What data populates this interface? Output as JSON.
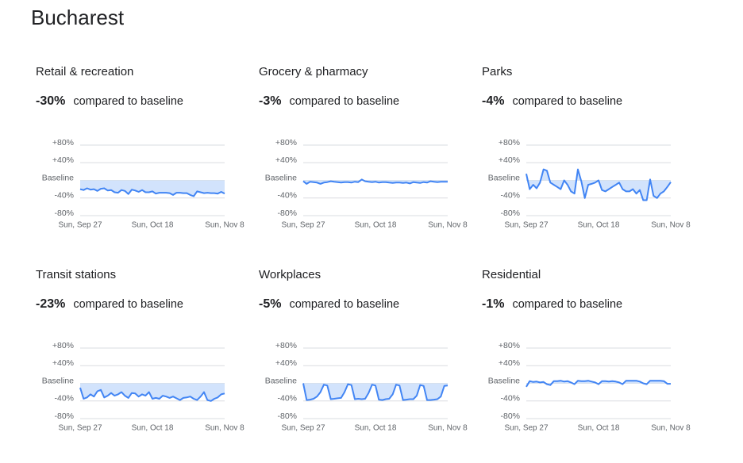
{
  "title": "Bucharest",
  "chart_data": [
    {
      "type": "line",
      "title": "Retail & recreation",
      "change": "-30%",
      "change_text": "compared to baseline",
      "color": "#4285f4",
      "fill": "#d2e3fc",
      "categories": [
        "Sun, Sep 27",
        null,
        null,
        null,
        null,
        null,
        null,
        null,
        null,
        null,
        null,
        null,
        null,
        null,
        null,
        null,
        null,
        null,
        null,
        null,
        null,
        "Sun, Oct 18",
        null,
        null,
        null,
        null,
        null,
        null,
        null,
        null,
        null,
        null,
        null,
        null,
        null,
        null,
        null,
        null,
        null,
        null,
        null,
        null,
        "Sun, Nov 8"
      ],
      "values": [
        -20,
        -22,
        -18,
        -21,
        -20,
        -24,
        -19,
        -18,
        -23,
        -22,
        -27,
        -28,
        -22,
        -24,
        -31,
        -21,
        -23,
        -26,
        -22,
        -27,
        -27,
        -25,
        -30,
        -28,
        -28,
        -28,
        -29,
        -33,
        -28,
        -28,
        -29,
        -29,
        -33,
        -36,
        -25,
        -27,
        -29,
        -28,
        -29,
        -29,
        -30,
        -26,
        -30
      ],
      "ylim": [
        -80,
        80
      ],
      "yticks": [
        {
          "value": 80,
          "label": "+80%"
        },
        {
          "value": 40,
          "label": "+40%"
        },
        {
          "value": 0,
          "label": "Baseline"
        },
        {
          "value": -40,
          "label": "-40%"
        },
        {
          "value": -80,
          "label": "-80%"
        }
      ],
      "grid": true
    },
    {
      "type": "line",
      "title": "Grocery & pharmacy",
      "change": "-3%",
      "change_text": "compared to baseline",
      "color": "#4285f4",
      "fill": "#d2e3fc",
      "categories": [
        "Sun, Sep 27",
        null,
        null,
        null,
        null,
        null,
        null,
        null,
        null,
        null,
        null,
        null,
        null,
        null,
        null,
        null,
        null,
        null,
        null,
        null,
        null,
        "Sun, Oct 18",
        null,
        null,
        null,
        null,
        null,
        null,
        null,
        null,
        null,
        null,
        null,
        null,
        null,
        null,
        null,
        null,
        null,
        null,
        null,
        null,
        "Sun, Nov 8"
      ],
      "values": [
        -2,
        -8,
        -3,
        -4,
        -5,
        -8,
        -5,
        -4,
        -2,
        -3,
        -4,
        -5,
        -4,
        -4,
        -5,
        -3,
        -4,
        2,
        -2,
        -3,
        -4,
        -3,
        -5,
        -4,
        -4,
        -5,
        -6,
        -5,
        -5,
        -6,
        -5,
        -7,
        -4,
        -5,
        -6,
        -4,
        -5,
        -2,
        -3,
        -4,
        -3,
        -3,
        -3
      ],
      "ylim": [
        -80,
        80
      ],
      "yticks": [
        {
          "value": 80,
          "label": "+80%"
        },
        {
          "value": 40,
          "label": "+40%"
        },
        {
          "value": 0,
          "label": "Baseline"
        },
        {
          "value": -40,
          "label": "-40%"
        },
        {
          "value": -80,
          "label": "-80%"
        }
      ],
      "grid": true
    },
    {
      "type": "line",
      "title": "Parks",
      "change": "-4%",
      "change_text": "compared to baseline",
      "color": "#4285f4",
      "fill": "#d2e3fc",
      "categories": [
        "Sun, Sep 27",
        null,
        null,
        null,
        null,
        null,
        null,
        null,
        null,
        null,
        null,
        null,
        null,
        null,
        null,
        null,
        null,
        null,
        null,
        null,
        null,
        "Sun, Oct 18",
        null,
        null,
        null,
        null,
        null,
        null,
        null,
        null,
        null,
        null,
        null,
        null,
        null,
        null,
        null,
        null,
        null,
        null,
        null,
        null,
        "Sun, Nov 8"
      ],
      "values": [
        15,
        -20,
        -10,
        -18,
        -5,
        25,
        22,
        -5,
        -10,
        -15,
        -20,
        0,
        -10,
        -25,
        -30,
        25,
        -2,
        -40,
        -10,
        -8,
        -5,
        0,
        -22,
        -25,
        -20,
        -15,
        -10,
        -5,
        -20,
        -25,
        -25,
        -20,
        -30,
        -22,
        -45,
        -45,
        2,
        -35,
        -40,
        -30,
        -25,
        -15,
        -4
      ],
      "ylim": [
        -80,
        80
      ],
      "yticks": [
        {
          "value": 80,
          "label": "+80%"
        },
        {
          "value": 40,
          "label": "+40%"
        },
        {
          "value": 0,
          "label": "Baseline"
        },
        {
          "value": -40,
          "label": "-40%"
        },
        {
          "value": -80,
          "label": "-80%"
        }
      ],
      "grid": true
    },
    {
      "type": "line",
      "title": "Transit stations",
      "change": "-23%",
      "change_text": "compared to baseline",
      "color": "#4285f4",
      "fill": "#d2e3fc",
      "categories": [
        "Sun, Sep 27",
        null,
        null,
        null,
        null,
        null,
        null,
        null,
        null,
        null,
        null,
        null,
        null,
        null,
        null,
        null,
        null,
        null,
        null,
        null,
        null,
        "Sun, Oct 18",
        null,
        null,
        null,
        null,
        null,
        null,
        null,
        null,
        null,
        null,
        null,
        null,
        null,
        null,
        null,
        null,
        null,
        null,
        null,
        null,
        "Sun, Nov 8"
      ],
      "values": [
        -10,
        -35,
        -32,
        -25,
        -30,
        -18,
        -15,
        -32,
        -28,
        -22,
        -28,
        -25,
        -20,
        -28,
        -33,
        -22,
        -23,
        -30,
        -25,
        -28,
        -20,
        -35,
        -33,
        -35,
        -28,
        -30,
        -33,
        -30,
        -34,
        -38,
        -33,
        -32,
        -30,
        -35,
        -38,
        -30,
        -20,
        -38,
        -40,
        -35,
        -32,
        -25,
        -23
      ],
      "ylim": [
        -80,
        80
      ],
      "yticks": [
        {
          "value": 80,
          "label": "+80%"
        },
        {
          "value": 40,
          "label": "+40%"
        },
        {
          "value": 0,
          "label": "Baseline"
        },
        {
          "value": -40,
          "label": "-40%"
        },
        {
          "value": -80,
          "label": "-80%"
        }
      ],
      "grid": true
    },
    {
      "type": "line",
      "title": "Workplaces",
      "change": "-5%",
      "change_text": "compared to baseline",
      "color": "#4285f4",
      "fill": "#d2e3fc",
      "categories": [
        "Sun, Sep 27",
        null,
        null,
        null,
        null,
        null,
        null,
        null,
        null,
        null,
        null,
        null,
        null,
        null,
        null,
        null,
        null,
        null,
        null,
        null,
        null,
        "Sun, Oct 18",
        null,
        null,
        null,
        null,
        null,
        null,
        null,
        null,
        null,
        null,
        null,
        null,
        null,
        null,
        null,
        null,
        null,
        null,
        null,
        null,
        "Sun, Nov 8"
      ],
      "values": [
        0,
        -38,
        -37,
        -35,
        -30,
        -20,
        -3,
        -5,
        -36,
        -35,
        -34,
        -33,
        -20,
        -2,
        -4,
        -36,
        -35,
        -36,
        -35,
        -22,
        -3,
        -5,
        -37,
        -38,
        -36,
        -35,
        -25,
        -3,
        -5,
        -38,
        -37,
        -36,
        -36,
        -28,
        -4,
        -6,
        -38,
        -38,
        -37,
        -36,
        -30,
        -6,
        -5
      ],
      "ylim": [
        -80,
        80
      ],
      "yticks": [
        {
          "value": 80,
          "label": "+80%"
        },
        {
          "value": 40,
          "label": "+40%"
        },
        {
          "value": 0,
          "label": "Baseline"
        },
        {
          "value": -40,
          "label": "-40%"
        },
        {
          "value": -80,
          "label": "-80%"
        }
      ],
      "grid": true
    },
    {
      "type": "line",
      "title": "Residential",
      "change": "-1%",
      "change_text": "compared to baseline",
      "color": "#4285f4",
      "fill": "#d2e3fc",
      "categories": [
        "Sun, Sep 27",
        null,
        null,
        null,
        null,
        null,
        null,
        null,
        null,
        null,
        null,
        null,
        null,
        null,
        null,
        null,
        null,
        null,
        null,
        null,
        null,
        "Sun, Oct 18",
        null,
        null,
        null,
        null,
        null,
        null,
        null,
        null,
        null,
        null,
        null,
        null,
        null,
        null,
        null,
        null,
        null,
        null,
        null,
        null,
        "Sun, Nov 8"
      ],
      "values": [
        -8,
        5,
        3,
        4,
        2,
        3,
        -2,
        -4,
        5,
        5,
        6,
        4,
        5,
        2,
        -2,
        6,
        5,
        5,
        6,
        4,
        2,
        -2,
        5,
        5,
        4,
        5,
        4,
        2,
        -2,
        6,
        6,
        6,
        6,
        4,
        0,
        -2,
        6,
        6,
        6,
        6,
        5,
        -1,
        -1
      ],
      "ylim": [
        -80,
        80
      ],
      "yticks": [
        {
          "value": 80,
          "label": "+80%"
        },
        {
          "value": 40,
          "label": "+40%"
        },
        {
          "value": 0,
          "label": "Baseline"
        },
        {
          "value": -40,
          "label": "-40%"
        },
        {
          "value": -80,
          "label": "-80%"
        }
      ],
      "grid": true
    }
  ]
}
